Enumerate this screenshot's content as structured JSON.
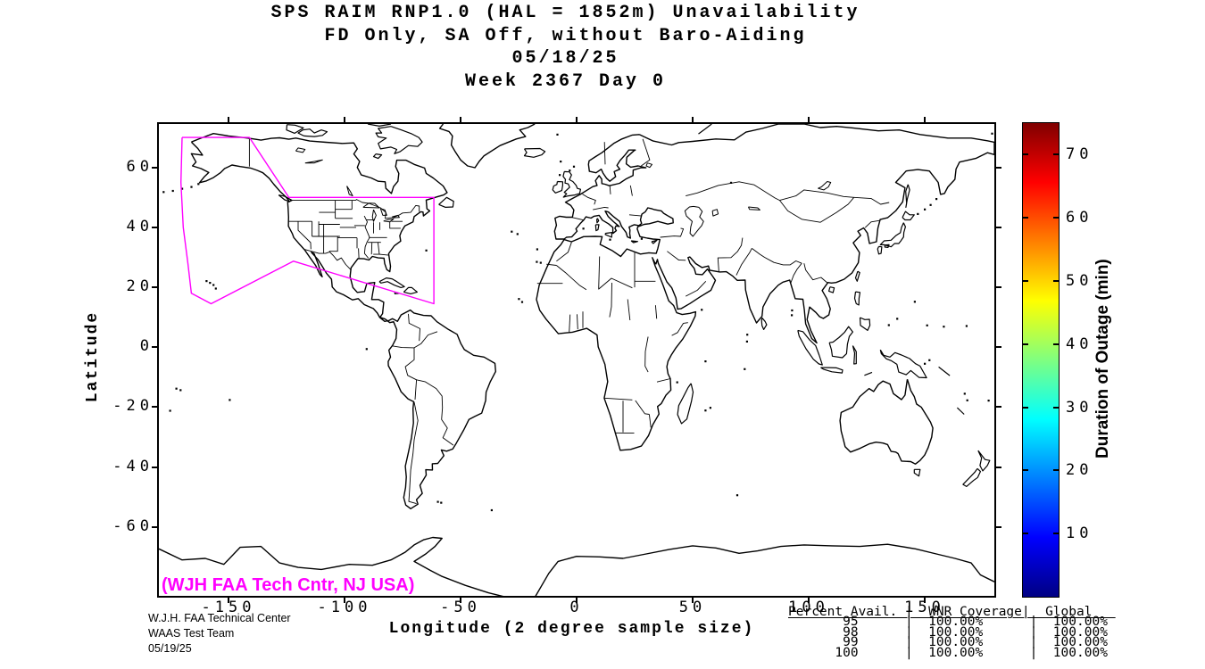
{
  "figure": {
    "title_lines": [
      "SPS RAIM RNP1.0 (HAL = 1852m) Unavailability",
      "FD Only, SA Off, without Baro-Aiding",
      "05/18/25",
      "Week 2367 Day 0"
    ],
    "credit_lines": [
      "W.J.H. FAA Technical Center",
      "WAAS Test Team",
      "05/19/25"
    ],
    "map_annotation": "(WJH FAA Tech Cntr, NJ USA)",
    "accent_color": "#ff00ff",
    "line_color": "#000000",
    "background_color": "#ffffff"
  },
  "axes": {
    "x": {
      "label": "Longitude (2 degree sample size)",
      "ticks": [
        -150,
        -100,
        -50,
        0,
        50,
        100,
        150
      ]
    },
    "y": {
      "label": "Latitude",
      "ticks": [
        60,
        40,
        20,
        0,
        -20,
        -40,
        -60
      ]
    }
  },
  "colorbar": {
    "label": "Duration of Outage (min)",
    "min": 0,
    "max": 75,
    "ticks": [
      10,
      20,
      30,
      40,
      50,
      60,
      70
    ],
    "colormap": "jet"
  },
  "coverage_table": {
    "header": [
      "Percent Avail.",
      "WNR Coverage",
      "Global"
    ],
    "rows": [
      [
        "95",
        "100.00%",
        "100.00%"
      ],
      [
        "98",
        "100.00%",
        "100.00%"
      ],
      [
        "99",
        "100.00%",
        "100.00%"
      ],
      [
        "100",
        "100.00%",
        "100.00%"
      ]
    ],
    "lines": [
      "Percent Avail. |  WNR Coverage|  Global   ",
      "       95      |  100.00%      |  100.00%",
      "       98      |  100.00%      |  100.00%",
      "       99      |  100.00%      |  100.00%",
      "      100      |  100.00%      |  100.00%"
    ]
  },
  "chart_data": {
    "type": "map",
    "projection": "equirectangular",
    "title": "SPS RAIM RNP1.0 (HAL = 1852m) Unavailability",
    "subtitle": "FD Only, SA Off, without Baro-Aiding 05/18/25 Week 2367 Day 0",
    "xlabel": "Longitude (2 degree sample size)",
    "ylabel": "Latitude",
    "xlim": [
      -180,
      180
    ],
    "ylim": [
      -83,
      74.5
    ],
    "grid": false,
    "outage_cells": [],
    "colorbar": {
      "label": "Duration of Outage (min)",
      "range": [
        0,
        75
      ],
      "colormap": "jet"
    },
    "waas_coverage_boundary_lonlat": [
      [
        -170,
        70
      ],
      [
        -141,
        70
      ],
      [
        -124,
        50
      ],
      [
        -61.5,
        50
      ],
      [
        -61.5,
        14.5
      ],
      [
        -122,
        28.7
      ],
      [
        -157.5,
        14.5
      ],
      [
        -166,
        18
      ],
      [
        -167.5,
        28
      ],
      [
        -169.5,
        40
      ],
      [
        -170.5,
        55
      ],
      [
        -170,
        70
      ]
    ],
    "availability_table": {
      "columns": [
        "Percent Avail.",
        "WNR Coverage",
        "Global"
      ],
      "rows": [
        [
          95,
          "100.00%",
          "100.00%"
        ],
        [
          98,
          "100.00%",
          "100.00%"
        ],
        [
          99,
          "100.00%",
          "100.00%"
        ],
        [
          100,
          "100.00%",
          "100.00%"
        ]
      ]
    }
  }
}
